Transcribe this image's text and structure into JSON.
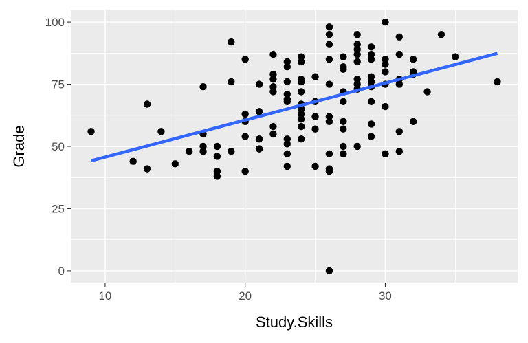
{
  "chart_data": {
    "type": "scatter",
    "xlabel": "Study.Skills",
    "ylabel": "Grade",
    "xlim": [
      7.55,
      39.45
    ],
    "ylim": [
      -5,
      105
    ],
    "x_ticks": [
      10,
      20,
      30
    ],
    "y_ticks": [
      0,
      25,
      50,
      75,
      100
    ],
    "x_tick_labels": [
      "10",
      "20",
      "30"
    ],
    "y_tick_labels": [
      "0",
      "25",
      "50",
      "75",
      "100"
    ],
    "grid": true,
    "point_color": "#000000",
    "trend_color": "#3366FF",
    "panel_background": "#EBEBEB",
    "points": [
      {
        "x": 9,
        "y": 56
      },
      {
        "x": 12,
        "y": 44
      },
      {
        "x": 13,
        "y": 67
      },
      {
        "x": 13,
        "y": 41
      },
      {
        "x": 14,
        "y": 56
      },
      {
        "x": 15,
        "y": 43
      },
      {
        "x": 16,
        "y": 48
      },
      {
        "x": 17,
        "y": 74
      },
      {
        "x": 17,
        "y": 55
      },
      {
        "x": 17,
        "y": 50
      },
      {
        "x": 17,
        "y": 48
      },
      {
        "x": 18,
        "y": 50
      },
      {
        "x": 18,
        "y": 46
      },
      {
        "x": 18,
        "y": 40
      },
      {
        "x": 18,
        "y": 38
      },
      {
        "x": 19,
        "y": 92
      },
      {
        "x": 19,
        "y": 76
      },
      {
        "x": 19,
        "y": 48
      },
      {
        "x": 20,
        "y": 85
      },
      {
        "x": 20,
        "y": 63
      },
      {
        "x": 20,
        "y": 60
      },
      {
        "x": 20,
        "y": 54
      },
      {
        "x": 20,
        "y": 40
      },
      {
        "x": 21,
        "y": 75
      },
      {
        "x": 21,
        "y": 64
      },
      {
        "x": 21,
        "y": 53
      },
      {
        "x": 21,
        "y": 49
      },
      {
        "x": 22,
        "y": 87
      },
      {
        "x": 22,
        "y": 79
      },
      {
        "x": 22,
        "y": 77
      },
      {
        "x": 22,
        "y": 74
      },
      {
        "x": 22,
        "y": 72
      },
      {
        "x": 22,
        "y": 58
      },
      {
        "x": 22,
        "y": 55
      },
      {
        "x": 23,
        "y": 84
      },
      {
        "x": 23,
        "y": 82
      },
      {
        "x": 23,
        "y": 76
      },
      {
        "x": 23,
        "y": 71
      },
      {
        "x": 23,
        "y": 69
      },
      {
        "x": 23,
        "y": 68
      },
      {
        "x": 23,
        "y": 53
      },
      {
        "x": 23,
        "y": 51
      },
      {
        "x": 23,
        "y": 47
      },
      {
        "x": 23,
        "y": 42
      },
      {
        "x": 24,
        "y": 86
      },
      {
        "x": 24,
        "y": 84
      },
      {
        "x": 24,
        "y": 77
      },
      {
        "x": 24,
        "y": 76
      },
      {
        "x": 24,
        "y": 72
      },
      {
        "x": 24,
        "y": 67
      },
      {
        "x": 24,
        "y": 65
      },
      {
        "x": 24,
        "y": 63
      },
      {
        "x": 24,
        "y": 61
      },
      {
        "x": 24,
        "y": 58
      },
      {
        "x": 24,
        "y": 53
      },
      {
        "x": 25,
        "y": 78
      },
      {
        "x": 25,
        "y": 68
      },
      {
        "x": 25,
        "y": 62
      },
      {
        "x": 25,
        "y": 57
      },
      {
        "x": 25,
        "y": 42
      },
      {
        "x": 26,
        "y": 98
      },
      {
        "x": 26,
        "y": 95
      },
      {
        "x": 26,
        "y": 91
      },
      {
        "x": 26,
        "y": 85
      },
      {
        "x": 26,
        "y": 75
      },
      {
        "x": 26,
        "y": 62
      },
      {
        "x": 26,
        "y": 60
      },
      {
        "x": 26,
        "y": 47
      },
      {
        "x": 26,
        "y": 41
      },
      {
        "x": 26,
        "y": 40
      },
      {
        "x": 26,
        "y": 0
      },
      {
        "x": 27,
        "y": 86
      },
      {
        "x": 27,
        "y": 82
      },
      {
        "x": 27,
        "y": 81
      },
      {
        "x": 27,
        "y": 72
      },
      {
        "x": 27,
        "y": 68
      },
      {
        "x": 27,
        "y": 60
      },
      {
        "x": 27,
        "y": 57
      },
      {
        "x": 27,
        "y": 50
      },
      {
        "x": 27,
        "y": 47
      },
      {
        "x": 28,
        "y": 95
      },
      {
        "x": 28,
        "y": 91
      },
      {
        "x": 28,
        "y": 89
      },
      {
        "x": 28,
        "y": 87
      },
      {
        "x": 28,
        "y": 84
      },
      {
        "x": 28,
        "y": 77
      },
      {
        "x": 28,
        "y": 75
      },
      {
        "x": 28,
        "y": 73
      },
      {
        "x": 28,
        "y": 50
      },
      {
        "x": 29,
        "y": 90
      },
      {
        "x": 29,
        "y": 87
      },
      {
        "x": 29,
        "y": 85
      },
      {
        "x": 29,
        "y": 78
      },
      {
        "x": 29,
        "y": 76
      },
      {
        "x": 29,
        "y": 74
      },
      {
        "x": 29,
        "y": 68
      },
      {
        "x": 29,
        "y": 59
      },
      {
        "x": 29,
        "y": 54
      },
      {
        "x": 30,
        "y": 100
      },
      {
        "x": 30,
        "y": 85
      },
      {
        "x": 30,
        "y": 83
      },
      {
        "x": 30,
        "y": 80
      },
      {
        "x": 30,
        "y": 75
      },
      {
        "x": 30,
        "y": 66
      },
      {
        "x": 30,
        "y": 47
      },
      {
        "x": 31,
        "y": 94
      },
      {
        "x": 31,
        "y": 87
      },
      {
        "x": 31,
        "y": 77
      },
      {
        "x": 31,
        "y": 75
      },
      {
        "x": 31,
        "y": 56
      },
      {
        "x": 31,
        "y": 48
      },
      {
        "x": 32,
        "y": 85
      },
      {
        "x": 32,
        "y": 80
      },
      {
        "x": 32,
        "y": 79
      },
      {
        "x": 32,
        "y": 60
      },
      {
        "x": 33,
        "y": 72
      },
      {
        "x": 34,
        "y": 95
      },
      {
        "x": 35,
        "y": 86
      },
      {
        "x": 38,
        "y": 76
      }
    ],
    "trend_line": {
      "x": [
        9,
        38
      ],
      "y": [
        44.2,
        87.4
      ]
    }
  }
}
